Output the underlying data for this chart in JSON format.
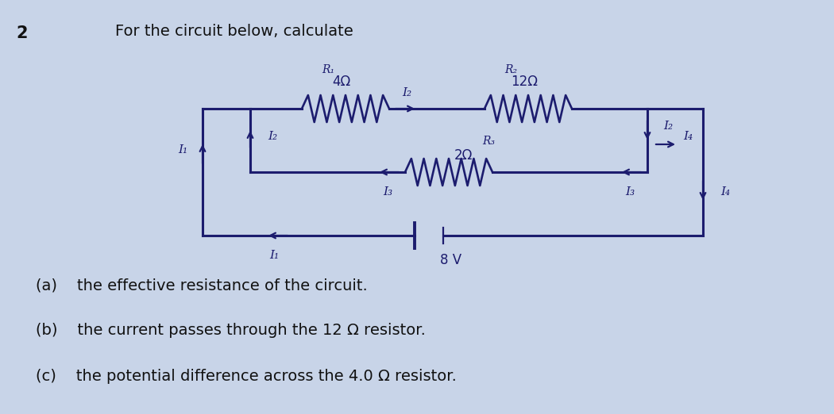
{
  "bg_color": "#c8d4e8",
  "title_text": "For the circuit below, calculate",
  "question_number": "2",
  "R1_label": "R₁",
  "R2_label": "R₂",
  "R3_label": "R₃",
  "R1_value": "4Ω",
  "R2_value": "12Ω",
  "R3_value": "2Ω",
  "voltage": "8 V",
  "I1": "I₁",
  "I2": "I₂",
  "I3": "I₃",
  "I4": "I₄",
  "parts": [
    "(a)    the effective resistance of the circuit.",
    "(b)    the current passes through the 12 Ω resistor.",
    "(c)    the potential difference across the 4.0 Ω resistor."
  ],
  "font_color": "#1c1c6e",
  "line_color": "#1c1c6e",
  "text_fontsize": 14,
  "label_fontsize": 12,
  "small_fontsize": 11,
  "circuit_color": "#1c1c6e"
}
